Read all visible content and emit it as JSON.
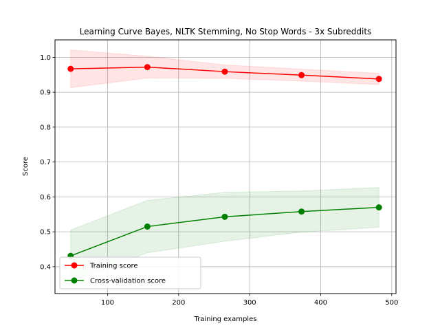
{
  "chart_data": {
    "type": "line",
    "title": "Learning Curve  Bayes, NLTK Stemming, No Stop Words - 3x Subreddits",
    "xlabel": "Training examples",
    "ylabel": "Score",
    "xlim": [
      26,
      506
    ],
    "ylim": [
      0.323,
      1.05
    ],
    "xticks": [
      100,
      200,
      300,
      400,
      500
    ],
    "yticks": [
      0.4,
      0.5,
      0.6,
      0.7,
      0.8,
      0.9,
      1.0
    ],
    "xtick_labels": [
      "100",
      "200",
      "300",
      "400",
      "500"
    ],
    "ytick_labels": [
      "0.4",
      "0.5",
      "0.6",
      "0.7",
      "0.8",
      "0.9",
      "1.0"
    ],
    "grid": true,
    "legend_position": "lower-left",
    "x": [
      48,
      156,
      265,
      373,
      482
    ],
    "series": [
      {
        "name": "Training score",
        "color": "#ff0000",
        "values": [
          0.967,
          0.972,
          0.959,
          0.949,
          0.938
        ],
        "band_upper": [
          1.021,
          1.003,
          0.978,
          0.966,
          0.954
        ],
        "band_lower": [
          0.913,
          0.941,
          0.94,
          0.932,
          0.922
        ]
      },
      {
        "name": "Cross-validation score",
        "color": "#008000",
        "values": [
          0.431,
          0.515,
          0.543,
          0.558,
          0.57
        ],
        "band_upper": [
          0.505,
          0.59,
          0.613,
          0.617,
          0.627
        ],
        "band_lower": [
          0.357,
          0.44,
          0.473,
          0.499,
          0.513
        ]
      }
    ]
  }
}
